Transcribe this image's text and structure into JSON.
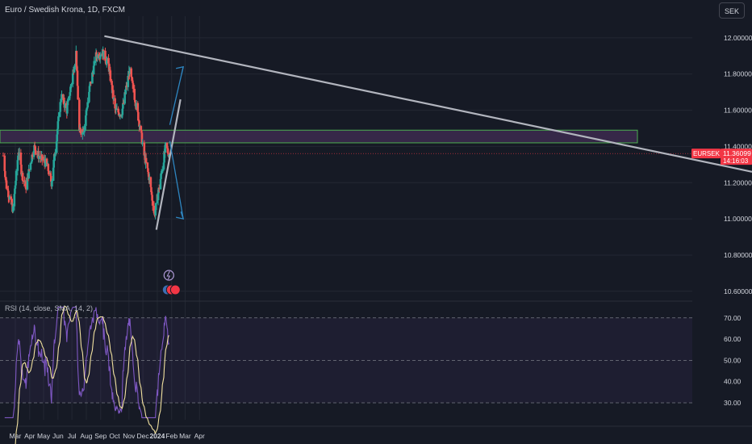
{
  "header": {
    "symbol_line": "Euro / Swedish Krona, 1D, FXCM"
  },
  "currency_button": "SEK",
  "rsi_header": "RSI (14, close, SMA, 14, 2)",
  "colors": {
    "up": "#26a69a",
    "down": "#ef5350",
    "rsi": "#7e57c2",
    "rsi_ma": "#f2e2a0",
    "zone_fill": "#3a2a4d",
    "zone_border": "#4caf50",
    "trend": "#b2b5be",
    "arrow": "#2e86c1",
    "price_badge": "#f23645"
  },
  "chart_data": [
    {
      "type": "candlestick",
      "title": "Euro / Swedish Krona",
      "y_ticks": [
        "12.00000",
        "11.80000",
        "11.60000",
        "11.40000",
        "11.20000",
        "11.00000",
        "10.80000",
        "10.60000"
      ],
      "ylim": [
        10.55,
        12.12
      ],
      "x_ticks": [
        "Mar",
        "Apr",
        "May",
        "Jun",
        "Jul",
        "Aug",
        "Sep",
        "Oct",
        "Nov",
        "Dec",
        "2024",
        "Feb",
        "Mar",
        "Apr"
      ],
      "key_points": [
        {
          "date": "2023-02-03",
          "close": 11.35
        },
        {
          "date": "2023-02-10",
          "close": 11.18
        },
        {
          "date": "2023-02-24",
          "close": 11.05
        },
        {
          "date": "2023-03-08",
          "close": 11.38
        },
        {
          "date": "2023-03-15",
          "close": 11.25
        },
        {
          "date": "2023-03-24",
          "close": 11.18
        },
        {
          "date": "2023-04-10",
          "close": 11.4
        },
        {
          "date": "2023-04-20",
          "close": 11.35
        },
        {
          "date": "2023-05-08",
          "close": 11.3
        },
        {
          "date": "2023-05-18",
          "close": 11.2
        },
        {
          "date": "2023-06-08",
          "close": 11.68
        },
        {
          "date": "2023-06-20",
          "close": 11.6
        },
        {
          "date": "2023-07-03",
          "close": 11.8
        },
        {
          "date": "2023-07-10",
          "close": 11.92
        },
        {
          "date": "2023-07-17",
          "close": 11.48
        },
        {
          "date": "2023-07-27",
          "close": 11.5
        },
        {
          "date": "2023-08-08",
          "close": 11.72
        },
        {
          "date": "2023-08-22",
          "close": 11.9
        },
        {
          "date": "2023-09-05",
          "close": 11.92
        },
        {
          "date": "2023-09-18",
          "close": 11.85
        },
        {
          "date": "2023-10-02",
          "close": 11.6
        },
        {
          "date": "2023-10-16",
          "close": 11.58
        },
        {
          "date": "2023-11-02",
          "close": 11.82
        },
        {
          "date": "2023-11-10",
          "close": 11.72
        },
        {
          "date": "2023-11-24",
          "close": 11.52
        },
        {
          "date": "2023-12-04",
          "close": 11.35
        },
        {
          "date": "2023-12-15",
          "close": 11.22
        },
        {
          "date": "2023-12-26",
          "close": 11.02
        },
        {
          "date": "2024-01-08",
          "close": 11.22
        },
        {
          "date": "2024-01-19",
          "close": 11.4
        },
        {
          "date": "2024-01-26",
          "close": 11.36
        }
      ],
      "last_price": {
        "symbol": "EURSEK",
        "price": "11.36099",
        "countdown": "14:16:03"
      },
      "resistance_zone": [
        11.42,
        11.49
      ]
    },
    {
      "type": "line",
      "title": "RSI (14, close, SMA, 14, 2)",
      "y_ticks": [
        "70.00",
        "60.00",
        "50.00",
        "40.00",
        "30.00"
      ],
      "ylim": [
        22,
        76
      ],
      "levels": [
        70,
        50,
        30
      ]
    }
  ]
}
